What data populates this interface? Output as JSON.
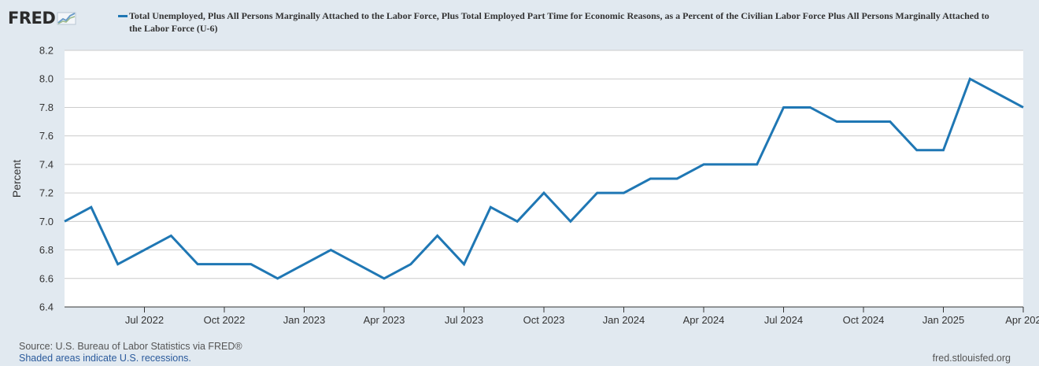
{
  "header": {
    "logo_text": "FRED",
    "logo_icon": "graph-line-icon",
    "series_title": "Total Unemployed, Plus All Persons Marginally Attached to the Labor Force, Plus Total Employed Part Time for Economic Reasons, as a Percent of the Civilian Labor Force Plus All Persons Marginally Attached to the Labor Force (U-6)"
  },
  "footer": {
    "source": "Source: U.S. Bureau of Labor Statistics via FRED®",
    "recession_note": "Shaded areas indicate U.S. recessions.",
    "site": "fred.stlouisfed.org"
  },
  "colors": {
    "line": "#1f77b4",
    "background": "#e1e9f0",
    "plot_background": "#ffffff",
    "grid": "#cccccc"
  },
  "chart_data": {
    "type": "line",
    "ylabel": "Percent",
    "ylim": [
      6.4,
      8.2
    ],
    "yticks": [
      6.4,
      6.6,
      6.8,
      7.0,
      7.2,
      7.4,
      7.6,
      7.8,
      8.0,
      8.2
    ],
    "grid": true,
    "xtick_labels": [
      "Jul 2022",
      "Oct 2022",
      "Jan 2023",
      "Apr 2023",
      "Jul 2023",
      "Oct 2023",
      "Jan 2024",
      "Apr 2024",
      "Jul 2024",
      "Oct 2024",
      "Jan 2025",
      "Apr 202"
    ],
    "series": [
      {
        "x": [
          "2022-04",
          "2022-05",
          "2022-06",
          "2022-07",
          "2022-08",
          "2022-09",
          "2022-10",
          "2022-11",
          "2022-12",
          "2023-01",
          "2023-02",
          "2023-03",
          "2023-04",
          "2023-05",
          "2023-06",
          "2023-07",
          "2023-08",
          "2023-09",
          "2023-10",
          "2023-11",
          "2023-12",
          "2024-01",
          "2024-02",
          "2024-03",
          "2024-04",
          "2024-05",
          "2024-06",
          "2024-07",
          "2024-08",
          "2024-09",
          "2024-10",
          "2024-11",
          "2024-12",
          "2025-01",
          "2025-02",
          "2025-03",
          "2025-04"
        ],
        "values": [
          7.0,
          7.1,
          6.7,
          6.8,
          6.9,
          6.7,
          6.7,
          6.7,
          6.6,
          6.7,
          6.8,
          6.7,
          6.6,
          6.7,
          6.9,
          6.7,
          7.1,
          7.0,
          7.2,
          7.0,
          7.2,
          7.2,
          7.3,
          7.3,
          7.4,
          7.4,
          7.4,
          7.8,
          7.8,
          7.7,
          7.7,
          7.7,
          7.5,
          7.5,
          8.0,
          7.9,
          7.8
        ]
      }
    ]
  }
}
